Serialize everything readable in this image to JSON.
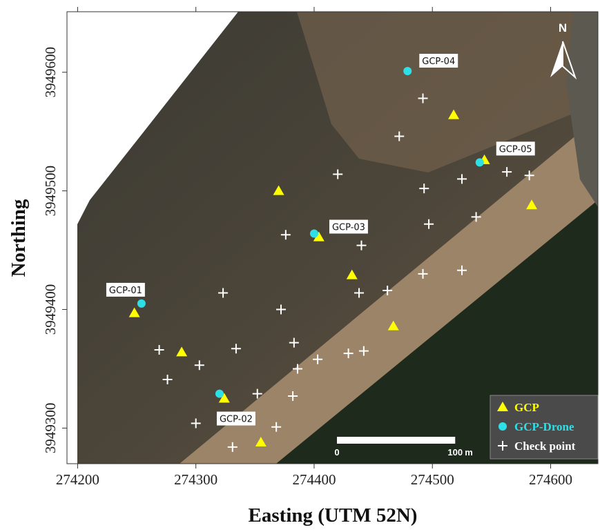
{
  "chart_data": {
    "type": "scatter",
    "x_label": "Easting (UTM 52N)",
    "y_label": "Northing",
    "xlim": [
      274191,
      274640
    ],
    "ylim": [
      3949270,
      3949651
    ],
    "xticks": [
      274200,
      274300,
      274400,
      274500,
      274600
    ],
    "yticks": [
      3949300,
      3949400,
      3949500,
      3949600
    ],
    "north_label": "N",
    "scale_bar": {
      "start": 0,
      "end": 100,
      "unit": "m"
    },
    "series": [
      {
        "name": "GCP",
        "color": "#ffff00",
        "marker": "triangle",
        "x": [
          274248,
          274288,
          274324,
          274355,
          274370,
          274404,
          274432,
          274467,
          274518,
          274544,
          274584
        ],
        "y": [
          3949397,
          3949364,
          3949325,
          3949288,
          3949500,
          3949461,
          3949429,
          3949386,
          3949564,
          3949526,
          3949488
        ]
      },
      {
        "name": "GCP-Drone",
        "color": "#2de0e8",
        "marker": "circle",
        "x": [
          274254,
          274320,
          274400,
          274479,
          274540
        ],
        "y": [
          3949405,
          3949329,
          3949464,
          3949601,
          3949524
        ],
        "point_labels": [
          "GCP-01",
          "GCP-02",
          "GCP-03",
          "GCP-04",
          "GCP-05"
        ]
      },
      {
        "name": "Check point",
        "color": "#ffffff",
        "marker": "plus",
        "x": [
          274269,
          274276,
          274303,
          274323,
          274334,
          274300,
          274331,
          274352,
          274368,
          274372,
          274383,
          274376,
          274382,
          274386,
          274403,
          274420,
          274440,
          274438,
          274429,
          274442,
          274462,
          274472,
          274492,
          274493,
          274497,
          274492,
          274525,
          274525,
          274537,
          274563,
          274582
        ],
        "y": [
          3949366,
          3949341,
          3949353,
          3949414,
          3949367,
          3949304,
          3949284,
          3949329,
          3949301,
          3949400,
          3949372,
          3949463,
          3949327,
          3949350,
          3949358,
          3949514,
          3949454,
          3949414,
          3949363,
          3949365,
          3949416,
          3949546,
          3949578,
          3949502,
          3949472,
          3949430,
          3949510,
          3949433,
          3949478,
          3949516,
          3949513
        ]
      }
    ]
  }
}
